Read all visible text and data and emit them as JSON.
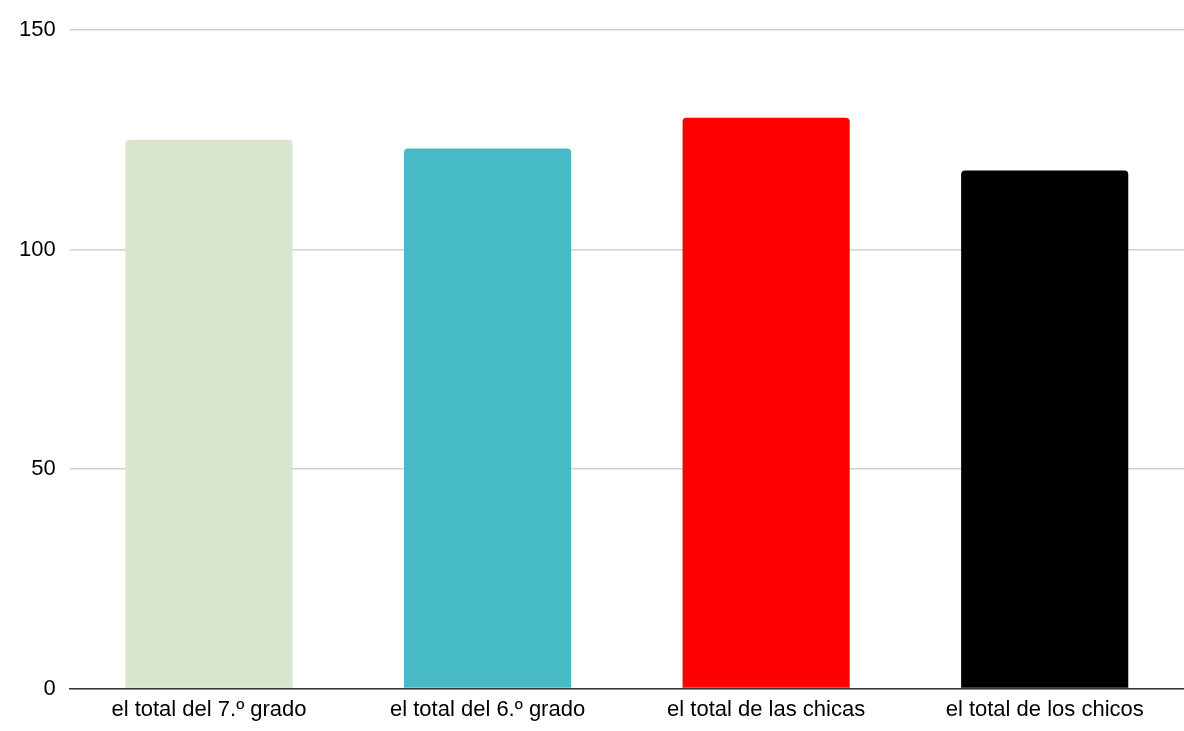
{
  "chart_data": {
    "type": "bar",
    "categories": [
      "el total del 7.º grado",
      "el total del 6.º grado",
      "el total de las chicas",
      "el total de los chicos"
    ],
    "values": [
      125,
      123,
      130,
      118
    ],
    "colors": [
      "#d9e5cf",
      "#46bac6",
      "#ff0000",
      "#000000"
    ],
    "ylim": [
      0,
      150
    ],
    "yticks": [
      0,
      50,
      100,
      150
    ],
    "grid": "y",
    "legend": false
  }
}
